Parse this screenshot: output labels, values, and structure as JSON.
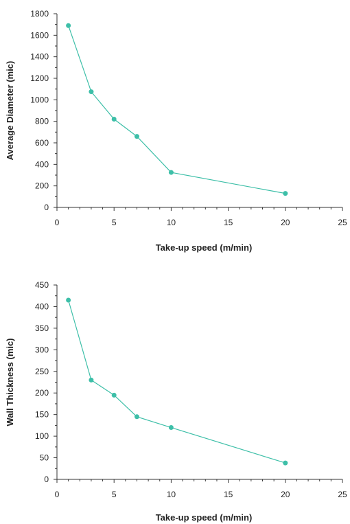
{
  "chart_data": [
    {
      "type": "line",
      "title": "",
      "xlabel": "Take-up speed (m/min)",
      "ylabel": "Average Diameter (mic)",
      "xlim": [
        0,
        25
      ],
      "ylim": [
        0,
        1800
      ],
      "x_ticks": [
        0,
        5,
        10,
        15,
        20,
        25
      ],
      "y_ticks": [
        0,
        200,
        400,
        600,
        800,
        1000,
        1200,
        1400,
        1600,
        1800
      ],
      "grid": false,
      "series": [
        {
          "x": [
            1,
            3,
            5,
            7,
            10,
            20
          ],
          "y": [
            1690,
            1075,
            820,
            660,
            325,
            130
          ],
          "color": "#3dbfa8"
        }
      ]
    },
    {
      "type": "line",
      "title": "",
      "xlabel": "Take-up speed (m/min)",
      "ylabel": "Wall Thickness (mic)",
      "xlim": [
        0,
        25
      ],
      "ylim": [
        0,
        450
      ],
      "x_ticks": [
        0,
        5,
        10,
        15,
        20,
        25
      ],
      "y_ticks": [
        0,
        50,
        100,
        150,
        200,
        250,
        300,
        350,
        400,
        450
      ],
      "grid": false,
      "series": [
        {
          "x": [
            1,
            3,
            5,
            7,
            10,
            20
          ],
          "y": [
            415,
            230,
            195,
            145,
            120,
            38
          ],
          "color": "#3dbfa8"
        }
      ]
    }
  ]
}
